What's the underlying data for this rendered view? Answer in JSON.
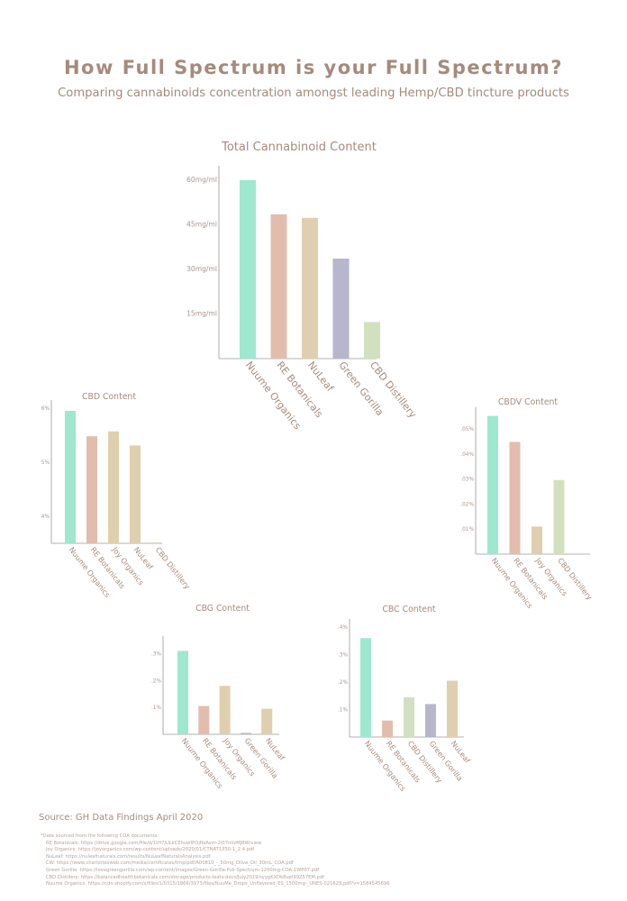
{
  "header": {
    "title": "How Full Spectrum is your Full Spectrum?",
    "subtitle": "Comparing cannabinoids concentration amongst leading Hemp/CBD tincture products"
  },
  "colors": {
    "Nuume Organics": "#9ee8cf",
    "RE Botanicals": "#e2bdae",
    "NuLeaf": "#e0cfae",
    "Joy Organics": "#e0cfae",
    "Green Gorilla": "#b6b6cc",
    "CBD Distillery": "#d3e0c0",
    "text": "#a58b7c",
    "axis": "#9a9a9a"
  },
  "chart_data": [
    {
      "id": "total",
      "type": "bar",
      "title": "Total Cannabinoid Content",
      "categories": [
        "Nuume Organics",
        "RE Botanicals",
        "NuLeaf",
        "Green Gorilla",
        "CBD Distillery"
      ],
      "values": [
        60,
        48.5,
        47.3,
        33.6,
        12.3
      ],
      "yticks": [
        15,
        30,
        45,
        60
      ],
      "ytick_labels": [
        "15mg/ml",
        "30mg/ml",
        "45mg/ml",
        "60mg/ml"
      ],
      "ylim": [
        0,
        63
      ],
      "grid": false
    },
    {
      "id": "cbd",
      "type": "bar",
      "title": "CBD Content",
      "categories": [
        "Nuume Organics",
        "RE Botanicals",
        "Joy Organics",
        "NuLeaf",
        "CBD Distillery"
      ],
      "values": [
        5.95,
        5.48,
        5.57,
        5.31,
        3.52
      ],
      "yticks": [
        4,
        5,
        6
      ],
      "ytick_labels": [
        "4%",
        "5%",
        "6%"
      ],
      "ylim": [
        3.5,
        6.05
      ],
      "grid": false
    },
    {
      "id": "cbdv",
      "type": "bar",
      "title": "CBDV Content",
      "categories": [
        "Nuume Organics",
        "RE Botanicals",
        "Joy Organics",
        "CBD Distillery"
      ],
      "values": [
        0.0552,
        0.0448,
        0.011,
        0.0296
      ],
      "yticks": [
        0.01,
        0.02,
        0.03,
        0.04,
        0.05
      ],
      "ytick_labels": [
        ".01%",
        ".02%",
        ".03%",
        ".04%",
        ".05%"
      ],
      "ylim": [
        0,
        0.0565
      ],
      "grid": false
    },
    {
      "id": "cbg",
      "type": "bar",
      "title": "CBG Content",
      "categories": [
        "Nuume Organics",
        "RE Botanicals",
        "Joy Organics",
        "Green Gorilla",
        "NuLeaf"
      ],
      "values": [
        0.31,
        0.105,
        0.18,
        0.005,
        0.095
      ],
      "yticks": [
        0.1,
        0.2,
        0.3
      ],
      "ytick_labels": [
        ".1%",
        ".2%",
        ".3%"
      ],
      "ylim": [
        0,
        0.345
      ],
      "grid": false
    },
    {
      "id": "cbc",
      "type": "bar",
      "title": "CBC Content",
      "categories": [
        "Nuume Organics",
        "RE Botanicals",
        "CBD Distillery",
        "Green Gorilla",
        "NuLeaf"
      ],
      "values": [
        0.36,
        0.06,
        0.145,
        0.12,
        0.205
      ],
      "yticks": [
        0.1,
        0.2,
        0.3,
        0.4
      ],
      "ytick_labels": [
        ".1%",
        ".2%",
        ".3%",
        ".4%"
      ],
      "ylim": [
        0,
        0.41
      ],
      "grid": false
    }
  ],
  "footer": {
    "source": "Source: GH Data Findings April 2020",
    "notes_head": "*Data sourced from the following COA documents:",
    "notes": [
      "RE Botanicals: https://drive.google.com/file/d/1tH7JULkCEhuwfPOjNzAvm-2i07mlzMJ8W/view",
      "Joy Organics: https://joyorganics.com/wp-content/uploads/2020/01/CTNAT1350-1_2.4.pdf",
      "NuLeaf: https://nuleafnaturals.com/results/NuLeafNaturalsAnalysis.pdf",
      "CW: https://www.charlottesweb.com/media/certificates/tmp/pdf/A00810_-_50mg_Olive_Oil_30mL_COA.pdf",
      "Green Gorilla: https://lovegreengorilla.com/wp-content/images/Green-Gorilla-Full-Spectrum-1200mg-COA-1WP07.pdf",
      "CBD Distillery: https://balancedhealthbotanicals.com/storage/products-tests-docs/July2019/syygKXDk8uel99Z57EM.pdf",
      "Nuume Organics: https://cdn.shopify.com/s/files/1/0315/1866/3973/files/NuuMe_Drops_Unflavored_ES_1500mg-_UNES-021629.pdf?v=1584545696"
    ]
  }
}
